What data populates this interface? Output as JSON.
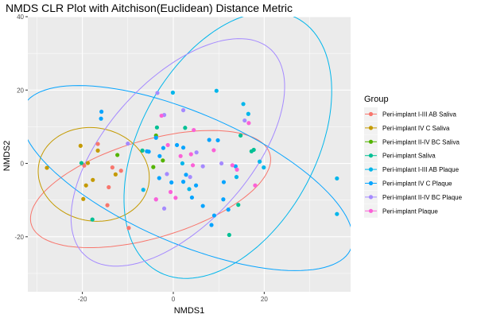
{
  "chart_data": {
    "type": "scatter",
    "title": "NMDS CLR Plot with Aitchison(Euclidean) Distance Metric",
    "xlabel": "NMDS1",
    "ylabel": "NMDS2",
    "xlim": [
      -32,
      39
    ],
    "ylim": [
      -35,
      40
    ],
    "xticks": [
      -20,
      0,
      20
    ],
    "yticks": [
      -20,
      0,
      20,
      40
    ],
    "grid": true,
    "legend_title": "Group",
    "legend_position": "right",
    "series": [
      {
        "name": "Peri-implant I-III AB Saliva",
        "color": "#F8766D",
        "points": [
          [
            -19.6,
            -0.6
          ],
          [
            -14.2,
            -6.5
          ],
          [
            -13.4,
            -1.1
          ],
          [
            -14.5,
            -11.4
          ],
          [
            -9.8,
            -17.6
          ],
          [
            -16.6,
            5.3
          ],
          [
            -11.5,
            -2.0
          ]
        ],
        "ellipse": {
          "cx": -5,
          "cy": -7,
          "rx": 28,
          "ry": 13,
          "angle": 22
        }
      },
      {
        "name": "Peri-implant IV C Saliva",
        "color": "#C49A00",
        "points": [
          [
            -27.8,
            -1.2
          ],
          [
            -19.8,
            -9.7
          ],
          [
            -18.8,
            0.1
          ],
          [
            -20.4,
            4.8
          ],
          [
            -17.7,
            -4.5
          ],
          [
            -16.6,
            3.5
          ],
          [
            -19.2,
            -6.0
          ],
          [
            -12.7,
            -3.0
          ]
        ],
        "ellipse": {
          "cx": -17.5,
          "cy": -3,
          "rx": 12,
          "ry": 13,
          "angle": 28
        }
      },
      {
        "name": "Peri-implant II-IV BC Saliva",
        "color": "#53B400",
        "points": [
          [
            -12.3,
            2.3
          ],
          [
            -4.4,
            -1.0
          ],
          [
            -2.3,
            0.8
          ],
          [
            -3.8,
            7.6
          ]
        ],
        "ellipse": null
      },
      {
        "name": "Peri-implant Saliva",
        "color": "#00C094",
        "points": [
          [
            -20.2,
            0.1
          ],
          [
            -17.8,
            -15.3
          ],
          [
            -6.8,
            3.5
          ],
          [
            -3.6,
            9.8
          ],
          [
            2.6,
            9.7
          ],
          [
            12.3,
            -19.5
          ],
          [
            17.2,
            3.3
          ],
          [
            17.7,
            3.7
          ],
          [
            14.3,
            -11.3
          ],
          [
            14.8,
            7.6
          ]
        ],
        "ellipse": null
      },
      {
        "name": "Peri-implant I-III AB Plaque",
        "color": "#00B6EB",
        "points": [
          [
            -0.1,
            19.3
          ],
          [
            9.5,
            19.8
          ],
          [
            15.4,
            16.2
          ],
          [
            16.5,
            13.5
          ],
          [
            19.0,
            0.5
          ],
          [
            2.0,
            0.0
          ],
          [
            3.5,
            -7.0
          ],
          [
            -6.6,
            -7.2
          ],
          [
            13.9,
            -3.7
          ],
          [
            19.9,
            -1.1
          ],
          [
            36.0,
            -4.1
          ],
          [
            36.0,
            -13.8
          ]
        ],
        "ellipse": {
          "cx": 12,
          "cy": 5,
          "rx": 20,
          "ry": 38,
          "angle": -20
        }
      },
      {
        "name": "Peri-implant IV C Plaque",
        "color": "#06A4FF",
        "points": [
          [
            -15.8,
            14.1
          ],
          [
            -15.9,
            12.2
          ],
          [
            -3.8,
            7.0
          ],
          [
            -2.2,
            4.2
          ],
          [
            0.8,
            5.0
          ],
          [
            -0.4,
            -5.2
          ],
          [
            2.2,
            -5.0
          ],
          [
            2.8,
            -3.1
          ],
          [
            6.5,
            -11.6
          ],
          [
            11.0,
            -9.8
          ],
          [
            9.0,
            -14.2
          ],
          [
            7.9,
            6.4
          ],
          [
            5.0,
            -6.0
          ],
          [
            9.8,
            6.3
          ],
          [
            13.7,
            -0.8
          ],
          [
            -3.0,
            2.0
          ],
          [
            -3.1,
            -4.0
          ],
          [
            -5.8,
            3.3
          ],
          [
            -5.4,
            3.2
          ],
          [
            2.2,
            4.3
          ],
          [
            11.1,
            -5.1
          ],
          [
            4.1,
            -9.3
          ],
          [
            8.4,
            -16.8
          ],
          [
            12.1,
            -12.6
          ]
        ],
        "ellipse": {
          "cx": 3,
          "cy": -4,
          "rx": 41,
          "ry": 17,
          "angle": -30
        }
      },
      {
        "name": "Peri-implant II-IV BC Plaque",
        "color": "#A58AFF",
        "points": [
          [
            -10.0,
            5.4
          ],
          [
            -3.5,
            19.2
          ],
          [
            -2.0,
            13.2
          ],
          [
            -1.4,
            -2.9
          ],
          [
            3.7,
            -3.7
          ],
          [
            -3.8,
            -9.8
          ],
          [
            -2.0,
            -12.3
          ],
          [
            6.5,
            -0.8
          ],
          [
            10.6,
            0.0
          ],
          [
            15.7,
            11.7
          ],
          [
            2.2,
            14.5
          ],
          [
            5.1,
            3.0
          ]
        ],
        "ellipse": {
          "cx": 1,
          "cy": 3,
          "rx": 17,
          "ry": 35,
          "angle": -32
        }
      },
      {
        "name": "Peri-implant Plaque",
        "color": "#FB61D7",
        "points": [
          [
            -2.6,
            13.0
          ],
          [
            -0.6,
            -7.8
          ],
          [
            0.5,
            -9.4
          ],
          [
            -3.8,
            -9.8
          ],
          [
            3.9,
            2.5
          ],
          [
            4.3,
            -0.5
          ],
          [
            4.5,
            9.1
          ],
          [
            8.9,
            3.6
          ],
          [
            13.0,
            -0.5
          ],
          [
            14.0,
            -1.7
          ],
          [
            18.0,
            -6.0
          ],
          [
            16.6,
            11.0
          ],
          [
            -1.2,
            5.0
          ],
          [
            1.6,
            2.0
          ]
        ],
        "ellipse": null
      }
    ]
  }
}
